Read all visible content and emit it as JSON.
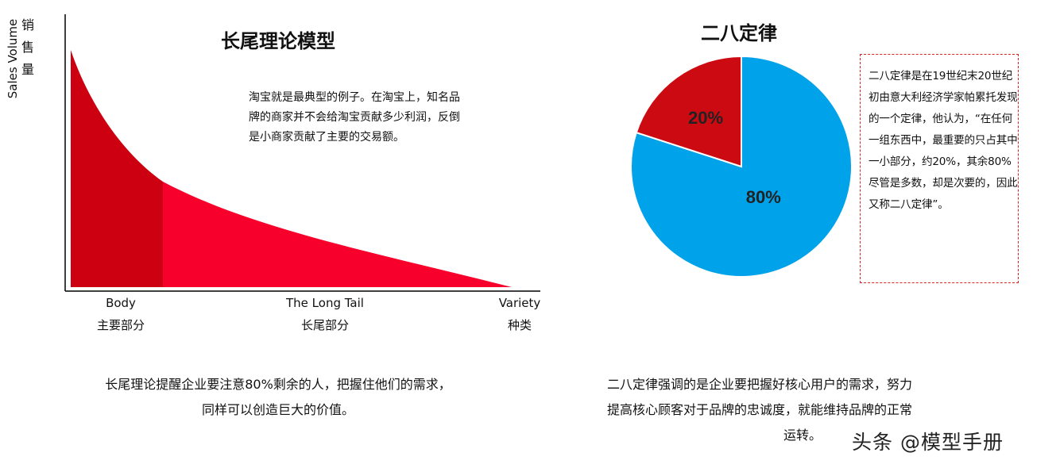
{
  "long_tail": {
    "title": "长尾理论模型",
    "y_label_cn": "销售量",
    "y_label_en": "Sales Volume",
    "note": "淘宝就是最典型的例子。在淘宝上，知名品牌的商家并不会给淘宝贡献多少利润，反倒是小商家贡献了主要的交易额。",
    "x_labels": [
      {
        "en": "Body",
        "cn": "主要部分"
      },
      {
        "en": "The Long Tail",
        "cn": "长尾部分"
      },
      {
        "en": "Variety",
        "cn": "种类"
      }
    ],
    "colors": {
      "body": "#cc0010",
      "tail": "#f7002c",
      "axis": "#000000"
    },
    "summary": [
      "长尾理论提醒企业要注意80%剩余的人，把握住他们的需求，",
      "同样可以创造巨大的价值。"
    ]
  },
  "pareto": {
    "title": "二八定律",
    "box_text": "二八定律是在19世纪末20世纪初由意大利经济学家帕累托发现的一个定律，他认为，“在任何一组东西中，最重要的只占其中一小部分，约20%，其余80%尽管是多数，却是次要的，因此又称二八定律”。",
    "summary": [
      "二八定律强调的是企业要把握好核心用户的需求，努力",
      "提高核心顾客对于品牌的忠诚度，就能维持品牌的正常",
      "运转。"
    ]
  },
  "chart_data": {
    "type": "pie",
    "title": "二八定律",
    "slices": [
      {
        "label": "80%",
        "value": 80,
        "color": "#00a2ea"
      },
      {
        "label": "20%",
        "value": 20,
        "color": "#cc0a12"
      }
    ]
  },
  "watermark": "头条 @模型手册"
}
